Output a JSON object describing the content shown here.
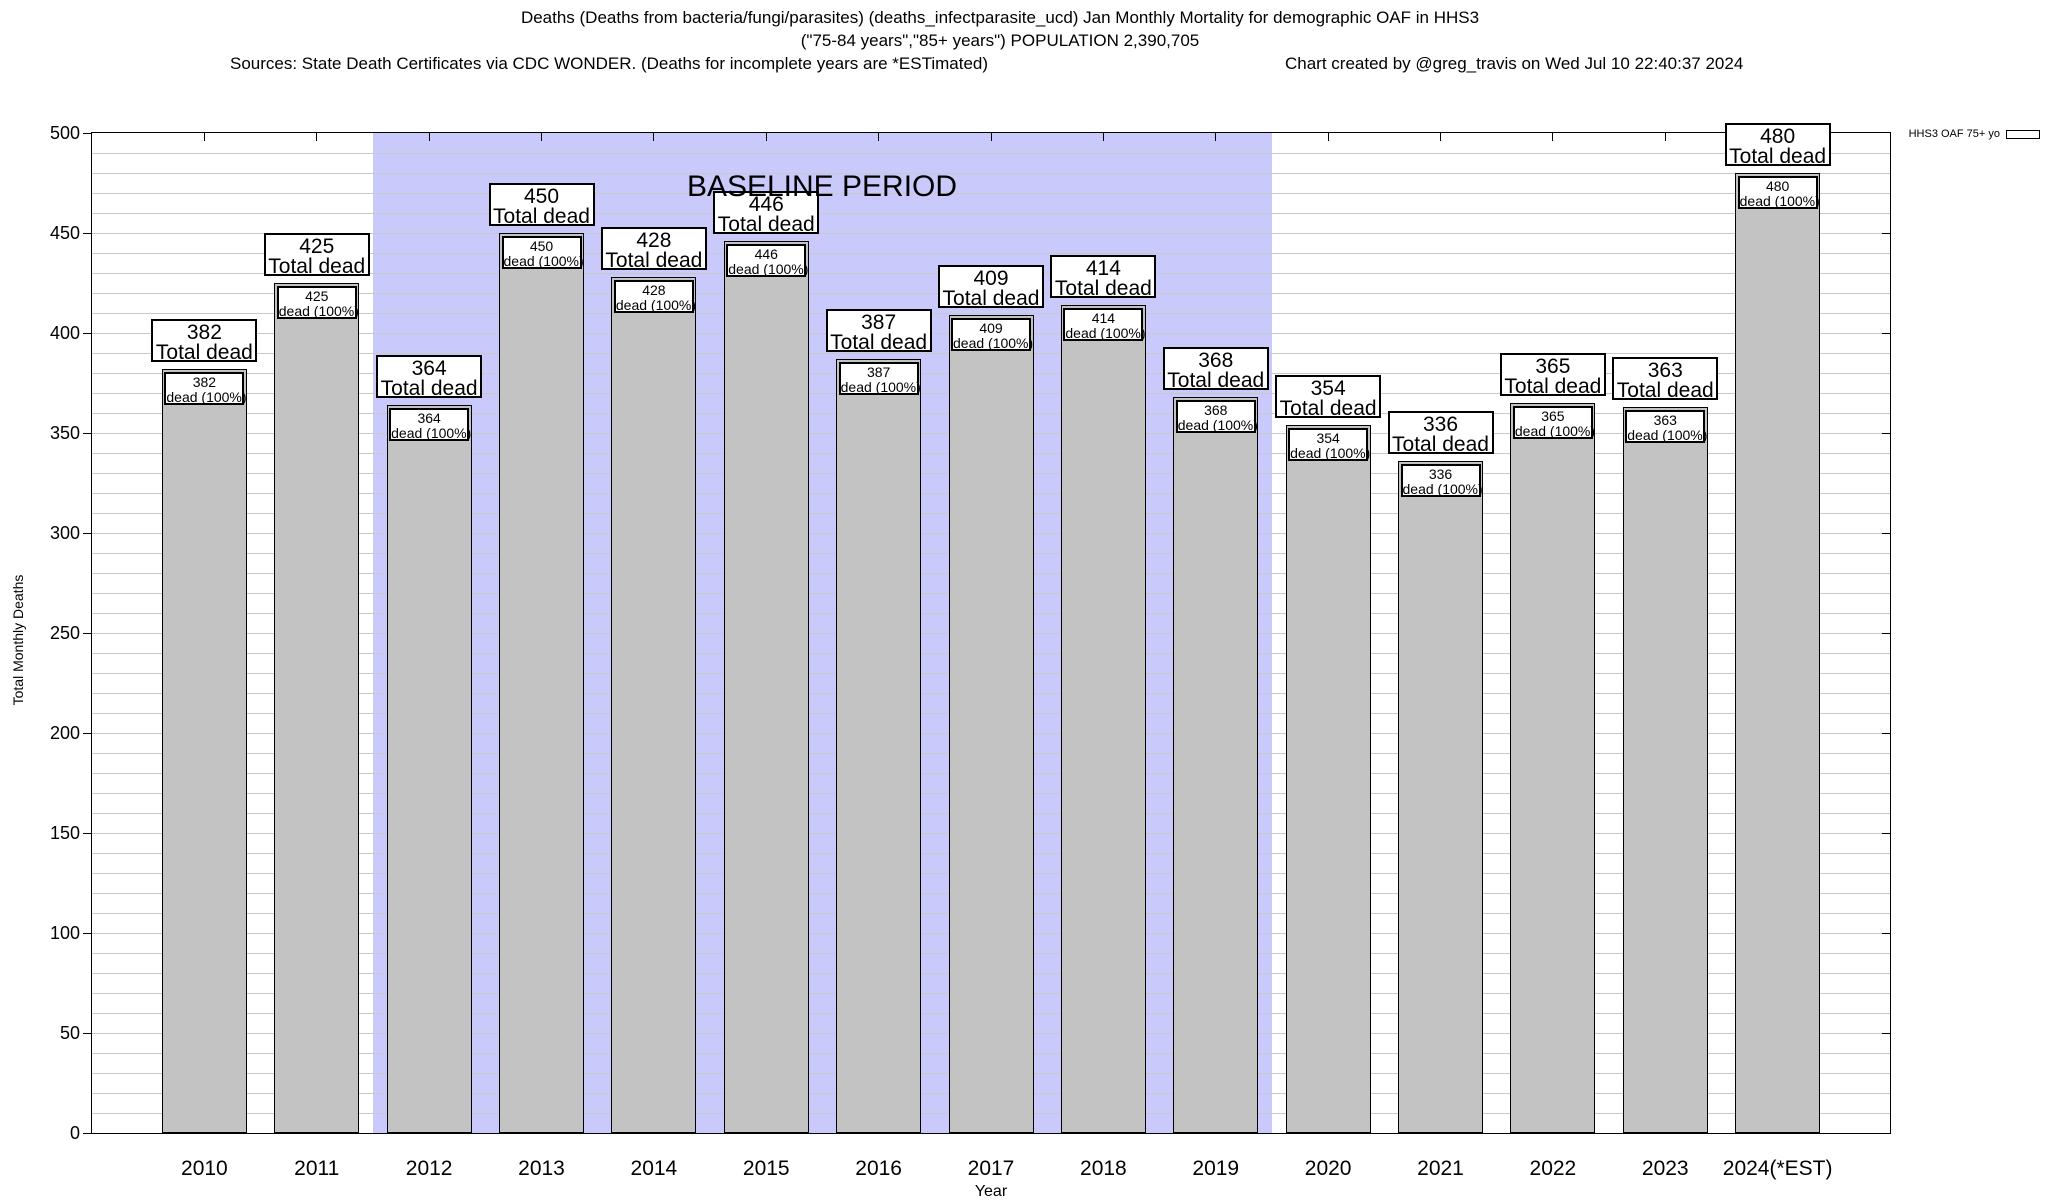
{
  "header": {
    "title_line1": "Deaths (Deaths from bacteria/fungi/parasites) (deaths_infectparasite_ucd) Jan Monthly Mortality for demographic OAF in HHS3",
    "title_line2": "(\"75-84 years\",\"85+ years\") POPULATION 2,390,705",
    "sources_line": "Sources: State Death Certificates via CDC WONDER. (Deaths for incomplete years are *ESTimated)",
    "credit_line": "Chart created by @greg_travis on Wed Jul 10 22:40:37 2024"
  },
  "legend": {
    "label": "HHS3 OAF 75+ yo"
  },
  "chart_data": {
    "type": "bar",
    "categories": [
      "2010",
      "2011",
      "2012",
      "2013",
      "2014",
      "2015",
      "2016",
      "2017",
      "2018",
      "2019",
      "2020",
      "2021",
      "2022",
      "2023",
      "2024(*EST)"
    ],
    "values": [
      382,
      425,
      364,
      450,
      428,
      446,
      387,
      409,
      414,
      368,
      354,
      336,
      365,
      363,
      480
    ],
    "bar_top_label_suffix": "Total dead",
    "bar_inner_label_suffix": "dead (100%)",
    "xlabel": "Year",
    "ylabel": "Total Monthly Deaths",
    "ylim": [
      0,
      500
    ],
    "ytick_step": 50,
    "grid_step": 10,
    "grid": true,
    "legend_position": "top-right",
    "baseline_period": {
      "label": "BASELINE PERIOD",
      "start_category": "2012",
      "end_category": "2019"
    },
    "colors": {
      "bar": "#c3c3c3",
      "baseline_bg": "#c9c9fb",
      "grid": "#c9c9c9",
      "border": "#000000"
    }
  }
}
